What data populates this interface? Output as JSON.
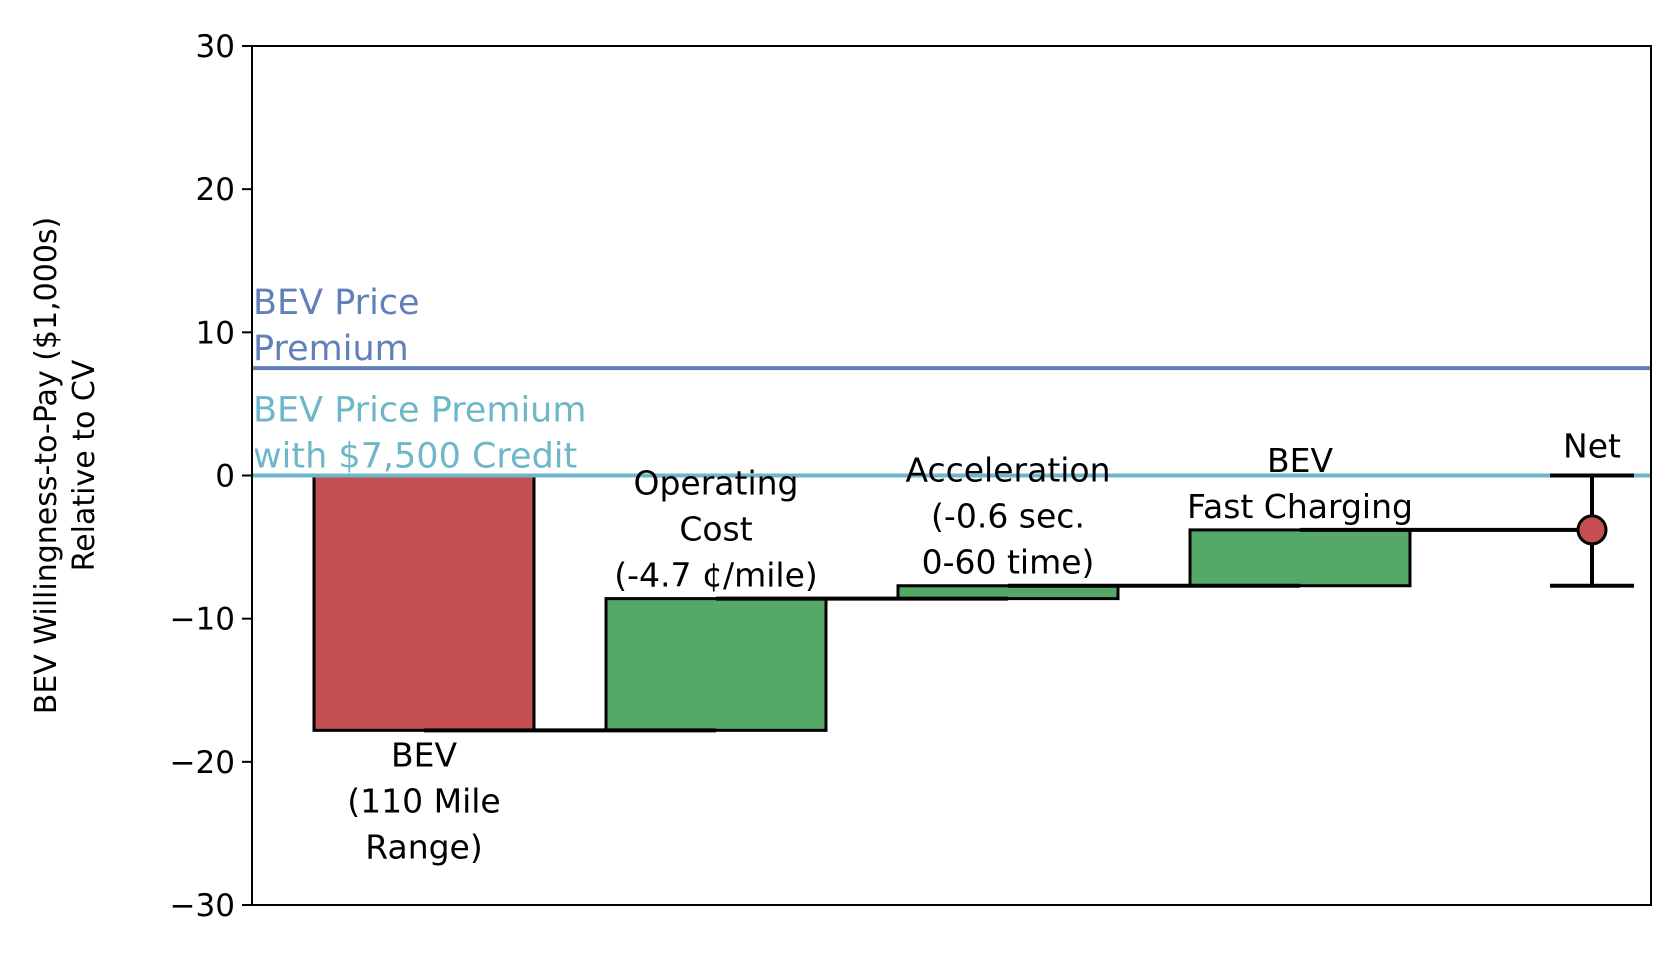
{
  "chart_data": {
    "type": "bar",
    "subtype": "waterfall",
    "title": "",
    "ylabel_lines": [
      "BEV Willingness-to-Pay ($1,000s)",
      "Relative to CV"
    ],
    "xlabel": "",
    "ylim": [
      -30,
      30
    ],
    "yticks": [
      30,
      20,
      10,
      0,
      -10,
      -20,
      -30
    ],
    "ytick_labels": [
      "30",
      "20",
      "10",
      "0",
      "−10",
      "−20",
      "−30"
    ],
    "grid": false,
    "bars": [
      {
        "label_lines": [
          "BEV",
          "(110 Mile",
          "Range)"
        ],
        "label_position": "below",
        "start": 0,
        "end": -17.8,
        "value": -17.8,
        "color": "#c44e52"
      },
      {
        "label_lines": [
          "Operating",
          "Cost",
          "(-4.7 ¢/mile)"
        ],
        "label_position": "above",
        "start": -17.8,
        "end": -8.6,
        "value": 9.2,
        "color": "#55a868"
      },
      {
        "label_lines": [
          "Acceleration",
          "(-0.6 sec.",
          "0-60 time)"
        ],
        "label_position": "above",
        "start": -8.6,
        "end": -7.7,
        "value": 0.9,
        "color": "#55a868"
      },
      {
        "label_lines": [
          "BEV",
          "Fast Charging"
        ],
        "label_position": "above",
        "start": -7.7,
        "end": -3.8,
        "value": 3.9,
        "color": "#55a868"
      }
    ],
    "net": {
      "label": "Net",
      "value": -3.8,
      "error_low": -7.7,
      "error_high": 0.0,
      "color": "#c44e52"
    },
    "reference_lines": [
      {
        "label_lines": [
          "BEV Price",
          "Premium"
        ],
        "value": 7.5,
        "color": "#5f80b8"
      },
      {
        "label_lines": [
          "BEV Price Premium",
          "with $7,500 Credit"
        ],
        "value": 0,
        "color": "#6db7c9"
      }
    ]
  }
}
